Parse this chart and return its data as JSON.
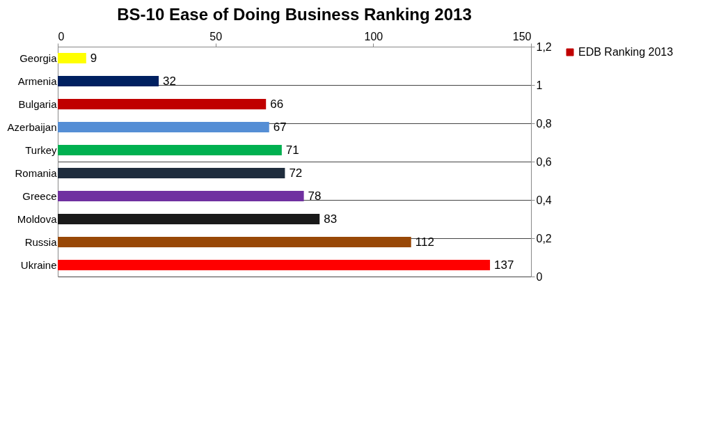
{
  "chart_data": {
    "type": "bar",
    "orientation": "horizontal",
    "title": "BS-10 Ease of Doing Business Ranking 2013",
    "categories": [
      "Georgia",
      "Armenia",
      "Bulgaria",
      "Azerbaijan",
      "Turkey",
      "Romania",
      "Greece",
      "Moldova",
      "Russia",
      "Ukraine"
    ],
    "series": [
      {
        "name": "EDB Ranking 2013",
        "values": [
          9,
          32,
          66,
          67,
          71,
          72,
          78,
          83,
          112,
          137
        ]
      }
    ],
    "colors": [
      "#ffff00",
      "#002060",
      "#c00000",
      "#558ed5",
      "#00b050",
      "#1f2d3d",
      "#7030a0",
      "#1a1a1a",
      "#984807",
      "#ff0000"
    ],
    "xlim": [
      0,
      150
    ],
    "xticks": [
      0,
      50,
      100,
      150
    ],
    "y2lim": [
      0,
      1.2
    ],
    "y2ticks": [
      0,
      {
        "value": 0.2,
        "label": "0,2"
      },
      {
        "value": 0.4,
        "label": "0,4"
      },
      {
        "value": 0.6,
        "label": "0,6"
      },
      {
        "value": 0.8,
        "label": "0,8"
      },
      1,
      {
        "value": 1.2,
        "label": "1,2"
      }
    ],
    "grid": "y",
    "data_labels": true,
    "legend": "right"
  }
}
